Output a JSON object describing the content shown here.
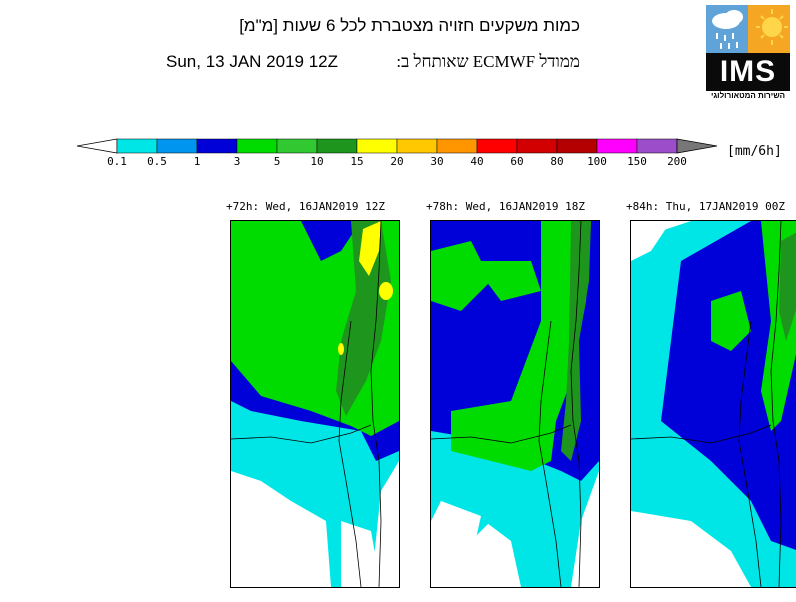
{
  "header": {
    "title_line1": "כמות משקעים חזויה מצטברת לכל 6 שעות [מ\"מ]",
    "model_line": "ממודל ECMWF שאותחל ב:",
    "init_date": "Sun, 13 JAN 2019 12Z"
  },
  "logo": {
    "wordmark": "IMS",
    "tagline": "השירות המטאורולוגי"
  },
  "legend": {
    "unit": "[mm/6h]",
    "ticks": [
      "0.1",
      "0.5",
      "1",
      "3",
      "5",
      "10",
      "15",
      "20",
      "30",
      "40",
      "60",
      "80",
      "100",
      "150",
      "200"
    ],
    "colors": [
      "#00e6e6",
      "#0096f0",
      "#0000d8",
      "#00dc00",
      "#32c832",
      "#1e961e",
      "#ffff00",
      "#ffc800",
      "#ff9600",
      "#ff0000",
      "#d20000",
      "#b40000",
      "#ff00ff",
      "#9b4dca"
    ],
    "under_color": "#ffffff",
    "over_color": "#777777"
  },
  "panels": [
    {
      "title": "+72h: Wed, 16JAN2019 12Z"
    },
    {
      "title": "+78h: Wed, 16JAN2019 18Z"
    },
    {
      "title": "+84h: Thu, 17JAN2019 00Z"
    }
  ]
}
